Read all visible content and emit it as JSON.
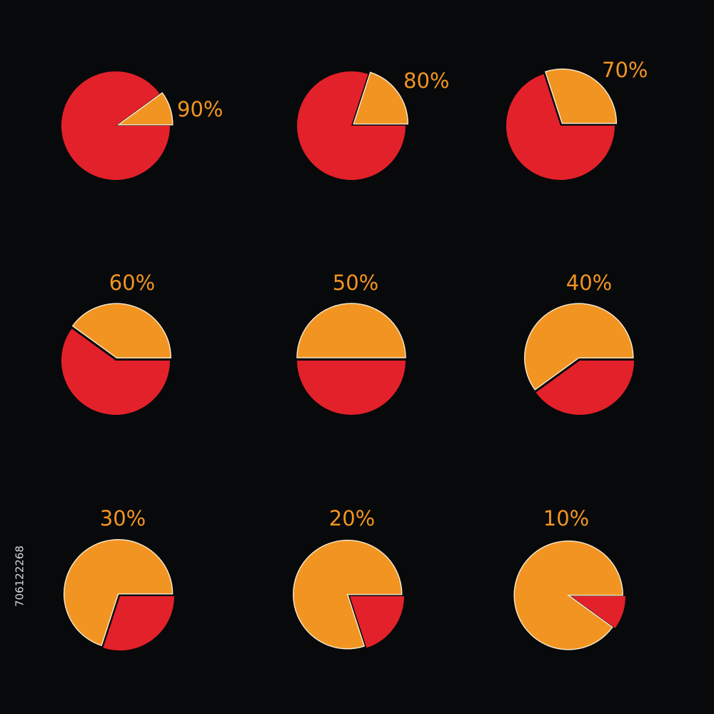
{
  "side_text": "706122268",
  "chart_data": [
    {
      "type": "pie",
      "values": [
        90,
        10
      ],
      "value_labels": [
        "90%",
        null
      ],
      "colors": [
        "#e3212a",
        "#f29421"
      ]
    },
    {
      "type": "pie",
      "values": [
        80,
        20
      ],
      "value_labels": [
        "80%",
        null
      ],
      "colors": [
        "#e3212a",
        "#f29421"
      ]
    },
    {
      "type": "pie",
      "values": [
        70,
        30
      ],
      "value_labels": [
        "70%",
        null
      ],
      "colors": [
        "#e3212a",
        "#f29421"
      ]
    },
    {
      "type": "pie",
      "values": [
        60,
        40
      ],
      "value_labels": [
        "60%",
        null
      ],
      "colors": [
        "#e3212a",
        "#f29421"
      ]
    },
    {
      "type": "pie",
      "values": [
        50,
        50
      ],
      "value_labels": [
        "50%",
        null
      ],
      "colors": [
        "#e3212a",
        "#f29421"
      ]
    },
    {
      "type": "pie",
      "values": [
        40,
        60
      ],
      "value_labels": [
        "40%",
        null
      ],
      "colors": [
        "#e3212a",
        "#f29421"
      ]
    },
    {
      "type": "pie",
      "values": [
        30,
        70
      ],
      "value_labels": [
        "30%",
        null
      ],
      "colors": [
        "#e3212a",
        "#f29421"
      ]
    },
    {
      "type": "pie",
      "values": [
        20,
        80
      ],
      "value_labels": [
        "20%",
        null
      ],
      "colors": [
        "#e3212a",
        "#f29421"
      ]
    },
    {
      "type": "pie",
      "values": [
        10,
        90
      ],
      "value_labels": [
        "10%",
        null
      ],
      "colors": [
        "#e3212a",
        "#f29421"
      ]
    }
  ]
}
